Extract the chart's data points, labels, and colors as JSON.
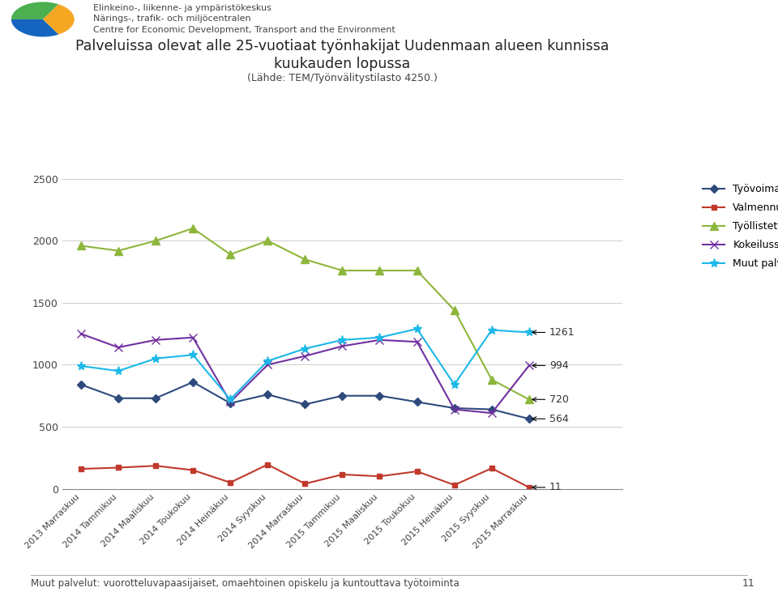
{
  "title_line1": "Palveluissa olevat alle 25-vuotiaat työnhakijat Uudenmaan alueen kunnissa",
  "title_line2": "kuukauden lopussa",
  "subtitle": "(Lähde: TEM/Työnvälitystilasto 4250.)",
  "header_line1": "Elinkeino-, liikenne- ja ympäristökeskus",
  "header_line2": "Närings-, trafik- och miljöcentralen",
  "header_line3": "Centre for Economic Development, Transport and the Environment",
  "footer": "Muut palvelut: vuorotteluvapaasijaiset, omaehtoinen opiskelu ja kuntouttava työtoiminta",
  "footer_num": "11",
  "ylim": [
    0,
    2500
  ],
  "yticks": [
    0,
    500,
    1000,
    1500,
    2000,
    2500
  ],
  "categories": [
    "2013 Marraskuu",
    "2014 Tammikuu",
    "2014 Maaliskuu",
    "2014 Toukokuu",
    "2014 Heinäkuu",
    "2014 Syyskuu",
    "2014 Marraskuu",
    "2015 Tammikuu",
    "2015 Maaliskuu",
    "2015 Toukokuu",
    "2015 Heinäkuu",
    "2015 Syyskuu",
    "2015 Marraskuu"
  ],
  "tyo_koulutus": [
    840,
    730,
    730,
    860,
    690,
    760,
    680,
    750,
    750,
    700,
    650,
    640,
    564
  ],
  "valmennus": [
    160,
    170,
    185,
    150,
    50,
    195,
    40,
    115,
    100,
    140,
    30,
    165,
    11
  ],
  "tyollistetty": [
    1960,
    1920,
    2000,
    2100,
    1890,
    2000,
    1850,
    1760,
    1760,
    1760,
    1440,
    880,
    720
  ],
  "kokeilussa": [
    1250,
    1140,
    1200,
    1220,
    700,
    1000,
    1070,
    1150,
    1200,
    1185,
    640,
    610,
    994
  ],
  "muut_palv": [
    990,
    950,
    1050,
    1080,
    720,
    1030,
    1130,
    1200,
    1220,
    1290,
    840,
    1280,
    1261
  ],
  "colors": {
    "Työvoimakoulutuksessa": "#2E4A7C",
    "Valmennuksessa": "#C0392B",
    "Työllistettynä/työharj.": "#8DB63C",
    "Kokeilussa": "#7030A0",
    "Muut palvelut*": "#1BB8E8"
  },
  "background_color": "#FFFFFF"
}
